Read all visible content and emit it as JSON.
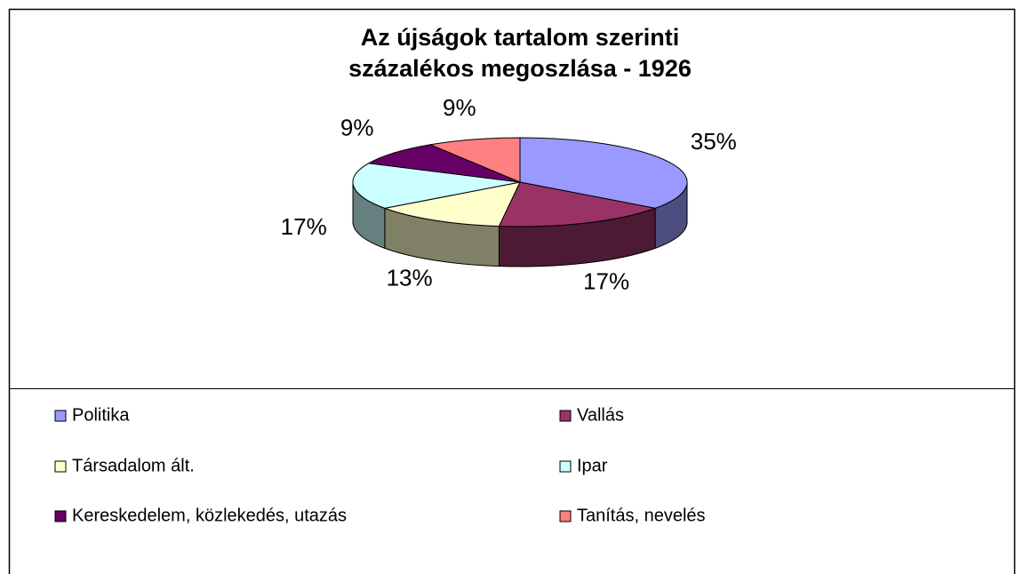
{
  "chart_data": {
    "type": "pie3d",
    "title": [
      "Az újságok tartalom szerinti",
      "százalékos megoszlása - 1926"
    ],
    "categories": [
      "Politika",
      "Vallás",
      "Társadalom ált.",
      "Ipar",
      "Kereskedelem, közlekedés, utazás",
      "Tanítás, nevelés"
    ],
    "values": [
      35,
      17,
      13,
      17,
      9,
      9
    ],
    "value_labels": [
      "35%",
      "17%",
      "13%",
      "17%",
      "9%",
      "9%"
    ],
    "colors": [
      "#9999ff",
      "#993366",
      "#ffffcc",
      "#ccffff",
      "#660066",
      "#ff8080"
    ],
    "legend": "bottom"
  }
}
